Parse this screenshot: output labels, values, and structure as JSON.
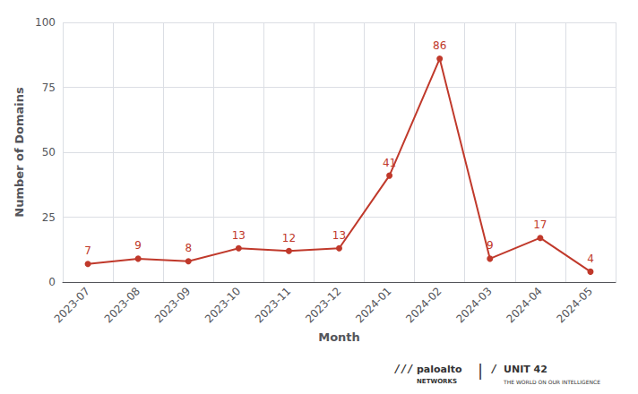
{
  "chart_data": {
    "type": "line",
    "xlabel": "Month",
    "ylabel": "Number of Domains",
    "categories": [
      "2023-07",
      "2023-08",
      "2023-09",
      "2023-10",
      "2023-11",
      "2023-12",
      "2024-01",
      "2024-02",
      "2024-03",
      "2024-04",
      "2024-05"
    ],
    "values": [
      7,
      9,
      8,
      13,
      12,
      13,
      41,
      86,
      9,
      17,
      4
    ],
    "color": "#c0392b",
    "marker": "circle",
    "data_labels": true,
    "ylim": [
      0,
      100
    ],
    "yticks": [
      0,
      25,
      50,
      75,
      100
    ],
    "grid": true,
    "annotations": [
      "///",
      "paloalto",
      "NETWORKS",
      "|",
      "/",
      "UNIT 42",
      "THE WORLD ON OUR INTELLIGENCE"
    ]
  }
}
